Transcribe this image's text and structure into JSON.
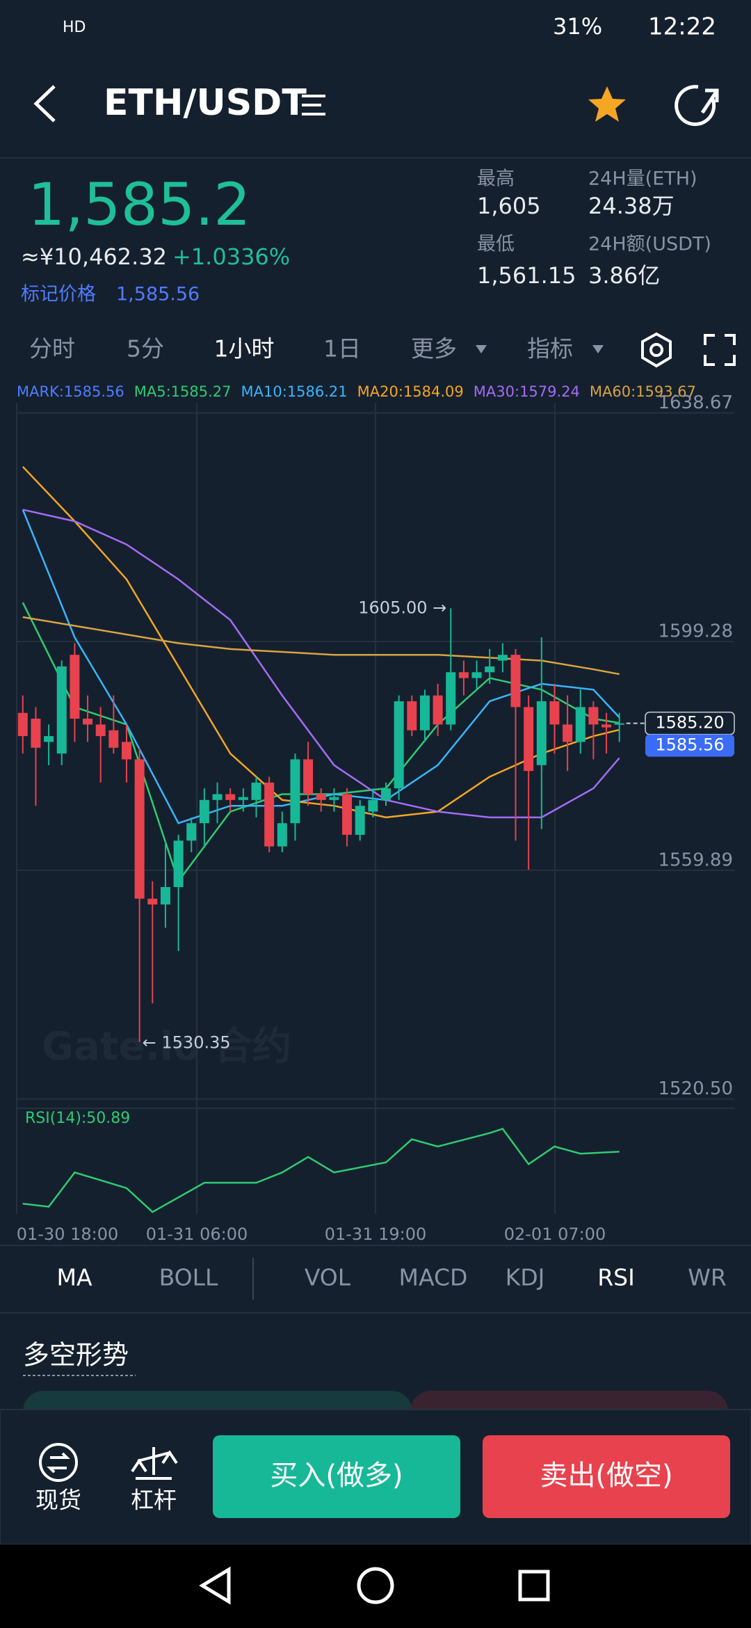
{
  "status_bar": {
    "left": "HD",
    "battery": "31%",
    "time": "12:22"
  },
  "header": {
    "title": "ETH/USDT"
  },
  "ticker": {
    "last": "1,585.2",
    "cny": "≈¥10,462.32",
    "change": "+1.0336%",
    "mark_label": "标记价格",
    "mark_price": "1,585.56",
    "high_label": "最高",
    "high": "1,605",
    "low_label": "最低",
    "low": "1,561.15",
    "vol_label": "24H量(ETH)",
    "vol": "24.38万",
    "amount_label": "24H额(USDT)",
    "amount": "3.86亿"
  },
  "timeframes": [
    "分时",
    "5分",
    "1小时",
    "1日",
    "更多",
    "指标"
  ],
  "chart_data": {
    "type": "candlestick",
    "watermark": "Gate.io 合约",
    "legend": [
      {
        "text": "MARK:1585.56",
        "color": "#4f7cff"
      },
      {
        "text": "MA5:1585.27",
        "color": "#2ecc71"
      },
      {
        "text": "MA10:1586.21",
        "color": "#38b6ff"
      },
      {
        "text": "MA20:1584.09",
        "color": "#f5a623"
      },
      {
        "text": "MA30:1579.24",
        "color": "#a46cf5"
      },
      {
        "text": "MA60:1593.67",
        "color": "#d9a441"
      }
    ],
    "up_color": "#17b897",
    "down_color": "#e8424e",
    "ylim": [
      1518.9,
      1640.4
    ],
    "yticks": [
      {
        "value": 1520.5,
        "label": "1520.50"
      },
      1559.89,
      1599.28,
      1638.67
    ],
    "open": [
      1587,
      1586,
      1582,
      1580,
      1597,
      1586,
      1585,
      1584,
      1582,
      1579,
      1555,
      1554,
      1557,
      1565,
      1568,
      1572,
      1573,
      1572,
      1572,
      1575,
      1564,
      1568,
      1579,
      1573,
      1572,
      1573,
      1566,
      1570,
      1572,
      1574,
      1589,
      1584,
      1590,
      1585,
      1594,
      1593,
      1594,
      1596,
      1597,
      1588,
      1578,
      1589,
      1585,
      1582,
      1588,
      1585,
      1585
    ],
    "high": [
      1590,
      1588,
      1585,
      1596,
      1599,
      1590,
      1588,
      1590,
      1585,
      1581,
      1558,
      1565,
      1566,
      1569,
      1574,
      1575,
      1574,
      1574,
      1576,
      1576,
      1570,
      1580,
      1582,
      1574,
      1574,
      1574,
      1572,
      1574,
      1575,
      1590,
      1590,
      1591,
      1592,
      1605,
      1596,
      1596,
      1598,
      1599,
      1598,
      1590,
      1600,
      1592,
      1590,
      1591,
      1589,
      1587,
      1587
    ],
    "low": [
      1580,
      1571,
      1578,
      1578,
      1582,
      1582,
      1575,
      1580,
      1575,
      1530.35,
      1537,
      1550,
      1546,
      1563,
      1564,
      1568,
      1570,
      1570,
      1569,
      1563,
      1563,
      1565,
      1571,
      1570,
      1570,
      1564,
      1565,
      1569,
      1571,
      1572,
      1583,
      1582,
      1583,
      1584,
      1590,
      1591,
      1592,
      1594,
      1565,
      1560,
      1567,
      1580,
      1577,
      1580,
      1579,
      1580,
      1582
    ],
    "close": [
      1583,
      1581,
      1583,
      1595,
      1586,
      1585,
      1583,
      1581,
      1579,
      1555,
      1554,
      1557,
      1565,
      1568,
      1572,
      1573,
      1572,
      1572.5,
      1575,
      1564,
      1568,
      1579,
      1573,
      1572,
      1572.5,
      1566,
      1571,
      1572,
      1574,
      1589,
      1584,
      1590,
      1585,
      1594,
      1593,
      1594,
      1595,
      1597,
      1588,
      1577,
      1589,
      1585,
      1582,
      1588,
      1585,
      1584.5,
      1585.2
    ],
    "series": [
      {
        "color": "#2ecc71",
        "x": [
          0,
          4,
          8,
          12,
          16,
          20,
          24,
          28,
          32,
          36,
          40,
          44,
          46
        ],
        "values": [
          1606,
          1588,
          1585,
          1558,
          1570,
          1573,
          1573,
          1574,
          1585,
          1593,
          1591,
          1586,
          1585.27
        ]
      },
      {
        "color": "#38b6ff",
        "x": [
          0,
          4,
          8,
          12,
          16,
          20,
          24,
          28,
          32,
          36,
          40,
          44,
          46
        ],
        "values": [
          1622,
          1600,
          1585,
          1568,
          1571,
          1571,
          1573,
          1572,
          1578,
          1589,
          1592,
          1591,
          1586.21
        ]
      },
      {
        "color": "#f5a623",
        "x": [
          0,
          4,
          8,
          12,
          16,
          20,
          24,
          28,
          32,
          36,
          40,
          44,
          46
        ],
        "values": [
          1629.4,
          1620,
          1610,
          1595,
          1580,
          1572,
          1571,
          1569,
          1570,
          1576,
          1580,
          1583,
          1584.09
        ]
      },
      {
        "color": "#a46cf5",
        "x": [
          0,
          4,
          8,
          12,
          16,
          20,
          24,
          28,
          32,
          36,
          40,
          44,
          46
        ],
        "values": [
          1622,
          1620,
          1616,
          1610,
          1603,
          1590,
          1578,
          1572,
          1570,
          1569,
          1569,
          1574,
          1579.24
        ]
      },
      {
        "color": "#d9a441",
        "x": [
          0,
          4,
          8,
          12,
          16,
          20,
          24,
          28,
          32,
          36,
          40,
          44,
          46
        ],
        "values": [
          1603.5,
          1602,
          1600.5,
          1599,
          1598,
          1597.5,
          1597,
          1597,
          1597,
          1596.5,
          1596,
          1594.5,
          1593.67
        ]
      }
    ],
    "max_label": "1605.00 →",
    "min_label": "← 1530.35",
    "price_tags": [
      {
        "value": 1585.2,
        "label": "1585.20"
      },
      {
        "value": 1585.56,
        "label": "1585.56"
      }
    ],
    "rsi": {
      "label": "RSI(14):50.89",
      "color": "#2ecc71",
      "ylim": [
        5,
        70
      ],
      "x": [
        0,
        2,
        4,
        8,
        10,
        14,
        18,
        20,
        22,
        24,
        28,
        30,
        32,
        36,
        37,
        39,
        41,
        43,
        46
      ],
      "values": [
        12.6,
        10.4,
        35.6,
        24.1,
        6.5,
        28,
        28,
        35.6,
        47,
        35.6,
        43,
        60,
        54.7,
        64.6,
        67.7,
        41.7,
        54.7,
        49.4,
        50.89
      ]
    },
    "x_labels": [
      "01-30 18:00",
      "01-31 06:00",
      "01-31 19:00",
      "02-01 07:00"
    ]
  },
  "indicator_tabs": [
    "MA",
    "BOLL",
    "VOL",
    "MACD",
    "KDJ",
    "RSI",
    "WR"
  ],
  "section_title": "多空形势",
  "bottom_bar": {
    "spot": "现货",
    "margin": "杠杆",
    "buy": "买入(做多)",
    "sell": "卖出(做空)"
  }
}
